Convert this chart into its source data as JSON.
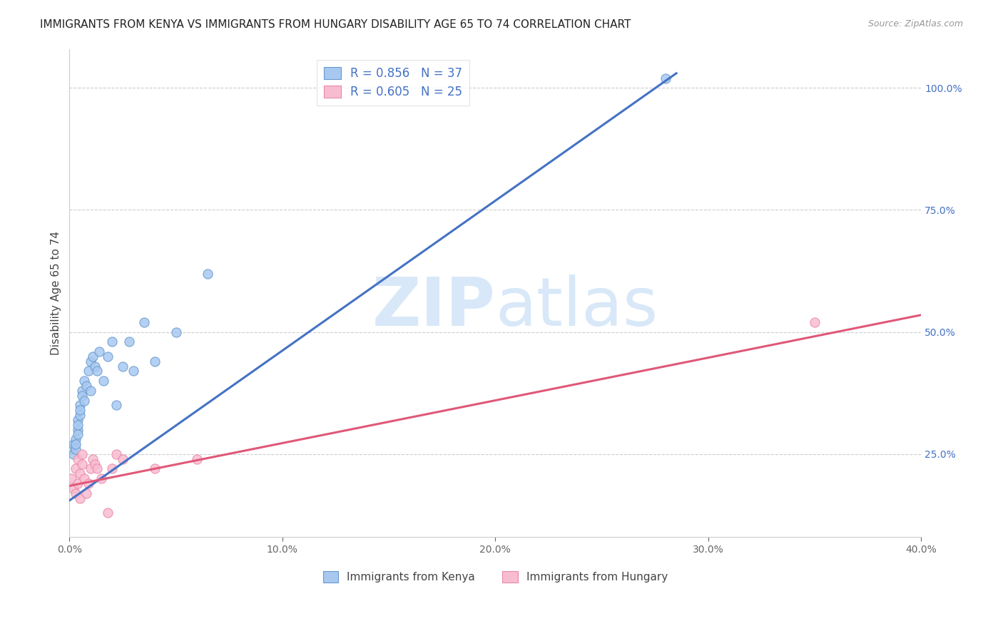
{
  "title": "IMMIGRANTS FROM KENYA VS IMMIGRANTS FROM HUNGARY DISABILITY AGE 65 TO 74 CORRELATION CHART",
  "source": "Source: ZipAtlas.com",
  "ylabel": "Disability Age 65 to 74",
  "xlim": [
    0.0,
    0.4
  ],
  "ylim": [
    0.08,
    1.08
  ],
  "xtick_labels": [
    "0.0%",
    "10.0%",
    "20.0%",
    "30.0%",
    "40.0%"
  ],
  "xtick_vals": [
    0.0,
    0.1,
    0.2,
    0.3,
    0.4
  ],
  "ytick_labels_right": [
    "25.0%",
    "50.0%",
    "75.0%",
    "100.0%"
  ],
  "ytick_vals_right": [
    0.25,
    0.5,
    0.75,
    1.0
  ],
  "kenya_color": "#A8C8F0",
  "kenya_edge_color": "#6699CC",
  "hungary_color": "#F8BCD0",
  "hungary_edge_color": "#E888A8",
  "kenya_line_color": "#4472C4",
  "hungary_line_color": "#E05878",
  "legend_label_kenya": "R = 0.856   N = 37",
  "legend_label_hungary": "R = 0.605   N = 25",
  "legend_bottom_kenya": "Immigrants from Kenya",
  "legend_bottom_hungary": "Immigrants from Hungary",
  "kenya_x": [
    0.001,
    0.002,
    0.002,
    0.003,
    0.003,
    0.003,
    0.004,
    0.004,
    0.004,
    0.004,
    0.005,
    0.005,
    0.005,
    0.006,
    0.006,
    0.007,
    0.007,
    0.008,
    0.009,
    0.01,
    0.01,
    0.011,
    0.012,
    0.013,
    0.014,
    0.016,
    0.018,
    0.02,
    0.022,
    0.025,
    0.028,
    0.03,
    0.035,
    0.04,
    0.05,
    0.065,
    0.28
  ],
  "kenya_y": [
    0.26,
    0.27,
    0.25,
    0.28,
    0.26,
    0.27,
    0.3,
    0.32,
    0.31,
    0.29,
    0.35,
    0.33,
    0.34,
    0.38,
    0.37,
    0.4,
    0.36,
    0.39,
    0.42,
    0.38,
    0.44,
    0.45,
    0.43,
    0.42,
    0.46,
    0.4,
    0.45,
    0.48,
    0.35,
    0.43,
    0.48,
    0.42,
    0.52,
    0.44,
    0.5,
    0.62,
    1.02
  ],
  "hungary_x": [
    0.001,
    0.002,
    0.003,
    0.003,
    0.004,
    0.004,
    0.005,
    0.005,
    0.006,
    0.006,
    0.007,
    0.008,
    0.009,
    0.01,
    0.011,
    0.012,
    0.013,
    0.015,
    0.018,
    0.02,
    0.022,
    0.025,
    0.04,
    0.06,
    0.35
  ],
  "hungary_y": [
    0.2,
    0.18,
    0.22,
    0.17,
    0.19,
    0.24,
    0.16,
    0.21,
    0.25,
    0.23,
    0.2,
    0.17,
    0.19,
    0.22,
    0.24,
    0.23,
    0.22,
    0.2,
    0.13,
    0.22,
    0.25,
    0.24,
    0.22,
    0.24,
    0.52
  ],
  "kenya_line_x": [
    0.0,
    0.285
  ],
  "kenya_line_y": [
    0.155,
    1.03
  ],
  "hungary_line_x": [
    0.0,
    0.4
  ],
  "hungary_line_y": [
    0.185,
    0.535
  ],
  "grid_color": "#CCCCCC",
  "background_color": "#FFFFFF",
  "marker_size": 90,
  "title_fontsize": 11,
  "axis_label_fontsize": 11,
  "tick_fontsize": 10,
  "source_fontsize": 9,
  "watermark_zip": "ZIP",
  "watermark_atlas": "atlas",
  "watermark_color": "#D8E8F8",
  "watermark_fontsize": 68
}
